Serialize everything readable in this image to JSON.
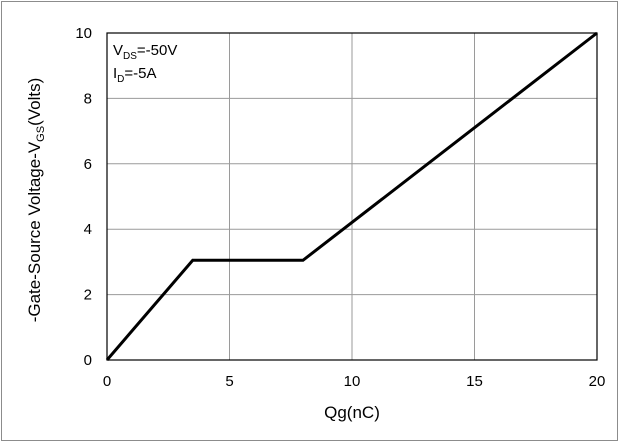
{
  "chart_data": {
    "type": "line",
    "title": "",
    "xlabel": "Qg(nC)",
    "ylabel": {
      "main": "-Gate-Source Voltage-V",
      "sub": "GS",
      "tail": "(Volts)"
    },
    "xlim": [
      0,
      20
    ],
    "ylim": [
      0,
      10
    ],
    "xticks": [
      0,
      5,
      10,
      15,
      20
    ],
    "yticks": [
      0,
      2,
      4,
      6,
      8,
      10
    ],
    "grid": true,
    "line_color": "#000000",
    "annotations": [
      {
        "main": "V",
        "sub": "DS",
        "tail": "=-50V"
      },
      {
        "main": "I",
        "sub": "D",
        "tail": "=-5A"
      }
    ],
    "series": [
      {
        "x": [
          0,
          3.5,
          8.0,
          20
        ],
        "y": [
          0,
          3.05,
          3.05,
          10
        ]
      }
    ]
  }
}
